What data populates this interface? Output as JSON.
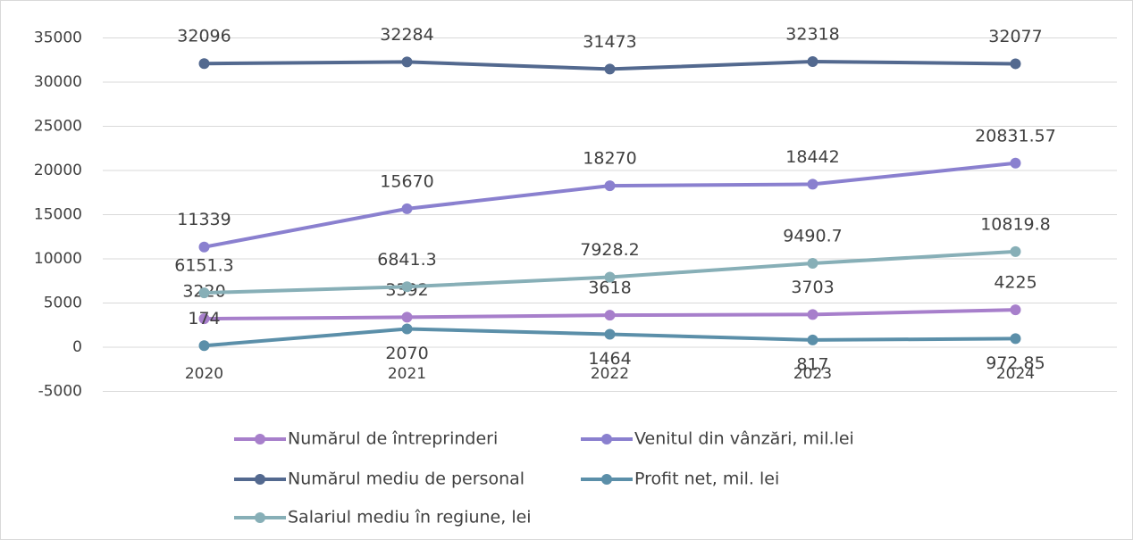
{
  "chart_data": {
    "type": "line",
    "categories": [
      "2020",
      "2021",
      "2022",
      "2023",
      "2024"
    ],
    "series": [
      {
        "name": "Numărul de întreprinderi",
        "color": "#a77fcb",
        "values": [
          3220,
          3392,
          3618,
          3703,
          4225
        ]
      },
      {
        "name": "Venitul din vânzări, mil.lei",
        "color": "#8a80cf",
        "values": [
          11339,
          15670,
          18270,
          18442,
          20831.57
        ]
      },
      {
        "name": "Numărul mediu de personal",
        "color": "#53698f",
        "values": [
          32096,
          32284,
          31473,
          32318,
          32077
        ]
      },
      {
        "name": "Profit net, mil. lei",
        "color": "#5b8fa9",
        "values": [
          174,
          2070,
          1464,
          817,
          972.85
        ]
      },
      {
        "name": "Salariul mediu în regiune, lei",
        "color": "#87afb7",
        "values": [
          6151.3,
          6841.3,
          7928.2,
          9490.7,
          10819.8
        ]
      }
    ],
    "ylim": [
      -5000,
      35000
    ],
    "yticks": [
      -5000,
      0,
      5000,
      10000,
      15000,
      20000,
      25000,
      30000,
      35000
    ],
    "grid": true,
    "legend": "bottom"
  }
}
